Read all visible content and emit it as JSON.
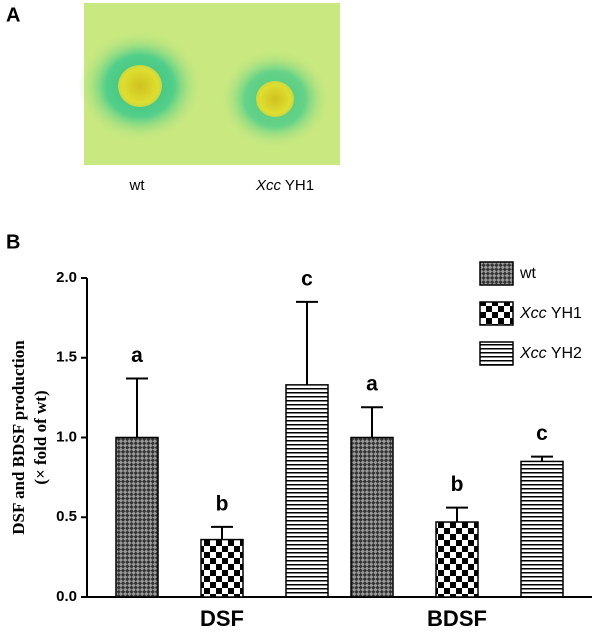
{
  "panel_a": {
    "label": "A",
    "sample_labels": [
      "wt",
      "Xcc YH1"
    ]
  },
  "chart_data": {
    "type": "bar",
    "panel_label": "B",
    "y_label": [
      "DSF and BDSF production",
      "(× fold of wt)"
    ],
    "categories": [
      "DSF",
      "BDSF"
    ],
    "series": [
      {
        "name": "wt",
        "values": [
          1.0,
          1.0
        ],
        "errors": [
          0.37,
          0.19
        ],
        "significance": [
          "a",
          "a"
        ]
      },
      {
        "name": "Xcc YH1",
        "values": [
          0.36,
          0.47
        ],
        "errors": [
          0.08,
          0.09
        ],
        "significance": [
          "b",
          "b"
        ]
      },
      {
        "name": "Xcc YH2",
        "values": [
          1.33,
          0.85
        ],
        "errors": [
          0.52,
          0.03
        ],
        "significance": [
          "c",
          "c"
        ]
      }
    ],
    "ylim": [
      0,
      2
    ],
    "yticks": [
      {
        "value": 0,
        "label": "0.0"
      },
      {
        "value": 0.5,
        "label": "0.5"
      },
      {
        "value": 1,
        "label": "1.0"
      },
      {
        "value": 1.5,
        "label": "1.5"
      },
      {
        "value": 2,
        "label": "2.0"
      }
    ]
  }
}
